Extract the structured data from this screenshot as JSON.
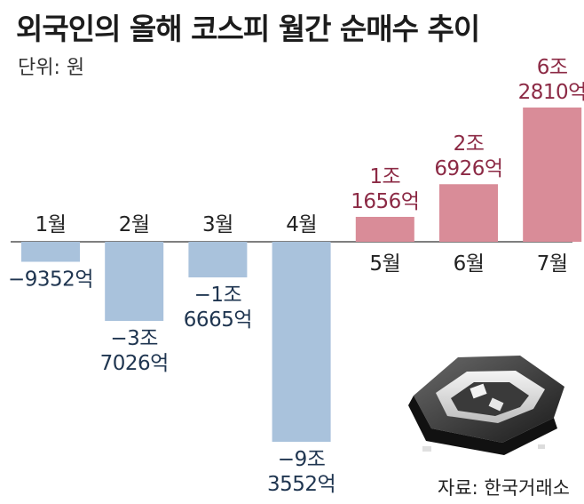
{
  "header": {
    "title": "외국인의 올해 코스피 월간 순매수 추이",
    "unit": "단위: 원"
  },
  "footer": {
    "source": "자료: 한국거래소"
  },
  "colors": {
    "positive": "#d98c98",
    "negative": "#a9c2dc",
    "positive_text": "#8c2a45",
    "negative_text": "#1f3550",
    "axis": "#555555"
  },
  "chart_data": {
    "type": "bar",
    "categories": [
      "1월",
      "2월",
      "3월",
      "4월",
      "5월",
      "6월",
      "7월"
    ],
    "values": [
      -9352,
      -37026,
      -16665,
      -93552,
      11656,
      26926,
      62810
    ],
    "value_unit": "억원",
    "data_labels": [
      [
        "−9352억"
      ],
      [
        "−3조",
        "7026억"
      ],
      [
        "−1조",
        "6665억"
      ],
      [
        "−9조",
        "3552억"
      ],
      [
        "1조",
        "1656억"
      ],
      [
        "2조",
        "6926억"
      ],
      [
        "6조",
        "2810억"
      ]
    ],
    "title": "외국인의 올해 코스피 월간 순매수 추이",
    "xlabel": "",
    "ylabel": "",
    "grid": false,
    "legend": "none"
  }
}
